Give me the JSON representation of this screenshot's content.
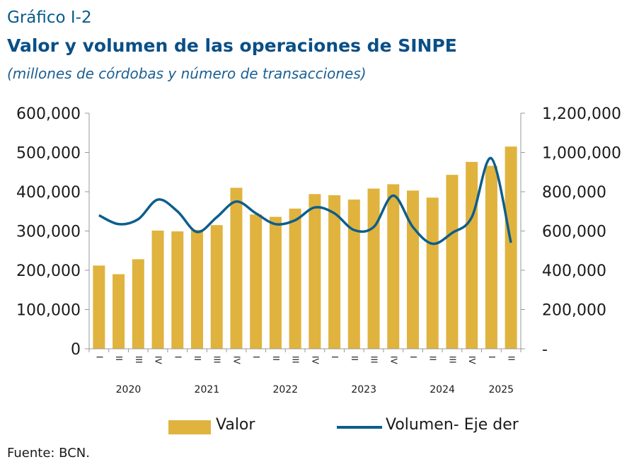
{
  "header": {
    "kicker": "Gráfico I-2",
    "title": "Valor y volumen de las operaciones de SINPE",
    "subtitle": "(millones de córdobas y número de transacciones)"
  },
  "source": "Fuente: BCN.",
  "colors": {
    "bar": "#e0b33e",
    "line": "#0c5e8c",
    "axis": "#999999",
    "text": "#1a1a1a"
  },
  "chart_data": {
    "type": "bar",
    "categories": [
      "I",
      "II",
      "III",
      "IV",
      "I",
      "II",
      "III",
      "IV",
      "I",
      "II",
      "III",
      "IV",
      "I",
      "II",
      "III",
      "IV",
      "I",
      "II",
      "III",
      "IV",
      "I",
      "II"
    ],
    "year_groups": [
      {
        "label": "2020",
        "start": 0,
        "count": 4
      },
      {
        "label": "2021",
        "start": 4,
        "count": 4
      },
      {
        "label": "2022",
        "start": 8,
        "count": 4
      },
      {
        "label": "2023",
        "start": 12,
        "count": 4
      },
      {
        "label": "2024",
        "start": 16,
        "count": 4
      },
      {
        "label": "2025",
        "start": 20,
        "count": 2
      }
    ],
    "series": [
      {
        "name": "Valor",
        "type": "bar",
        "axis": "left",
        "values": [
          212000,
          190000,
          228000,
          301000,
          299000,
          303000,
          315000,
          410000,
          342000,
          336000,
          357000,
          394000,
          391000,
          380000,
          408000,
          419000,
          403000,
          385000,
          443000,
          476000,
          466000,
          515000
        ]
      },
      {
        "name": "Volumen- Eje der",
        "type": "line",
        "axis": "right",
        "values": [
          680000,
          635000,
          660000,
          760000,
          700000,
          595000,
          670000,
          750000,
          690000,
          635000,
          655000,
          720000,
          690000,
          605000,
          620000,
          780000,
          620000,
          535000,
          590000,
          670000,
          970000,
          540000
        ]
      }
    ],
    "yleft": {
      "range": [
        0,
        600000
      ],
      "ticks": [
        "0",
        "100,000",
        "200,000",
        "300,000",
        "400,000",
        "500,000",
        "600,000"
      ]
    },
    "yright": {
      "range": [
        0,
        1200000
      ],
      "ticks": [
        "-",
        "200,000",
        "400,000",
        "600,000",
        "800,000",
        "1,000,000",
        "1,200,000"
      ]
    },
    "grid": false,
    "legend_position": "bottom"
  }
}
